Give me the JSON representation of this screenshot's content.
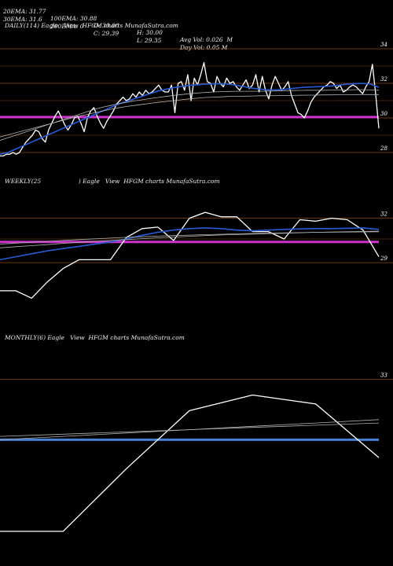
{
  "header": {
    "row1": [
      {
        "id": "ema20",
        "text": "20EMA: 31.77"
      },
      {
        "id": "ema100",
        "text": "100EMA: 30.88"
      },
      {
        "id": "open",
        "text": "O: 30.00"
      },
      {
        "id": "high",
        "text": "H: 30.00"
      },
      {
        "id": "avgvol",
        "text": "Avg Vol: 0.026  M"
      }
    ],
    "row2": [
      {
        "id": "ema30",
        "text": "30EMA: 31.6"
      },
      {
        "id": "ema200",
        "text": "200EMA: 0"
      },
      {
        "id": "close",
        "text": "C: 29.39"
      },
      {
        "id": "low",
        "text": "L: 29.35"
      },
      {
        "id": "dayvol",
        "text": "Day Vol: 0.05 M"
      }
    ]
  },
  "colors": {
    "background": "#000000",
    "price": "#ffffff",
    "ema_fast": "#2a5bd7",
    "ema_slow": "#b0b0b0",
    "support": "#cc33cc",
    "grid": "#8b4513",
    "monthly_band": "#4a7fd6"
  },
  "chart_data": [
    {
      "type": "line",
      "panel": "daily",
      "label": "DAILY(114) Eagle   View  HFGM charts MunafaSutra.com",
      "yticks": [
        34,
        32,
        30,
        28
      ],
      "ylim": [
        27.5,
        35.0
      ],
      "support_level": 30.05,
      "series": [
        {
          "name": "price",
          "values": [
            27.8,
            27.8,
            27.9,
            27.9,
            28.0,
            27.9,
            28.0,
            28.3,
            28.6,
            28.8,
            29.0,
            29.3,
            29.2,
            28.8,
            28.6,
            29.3,
            29.7,
            30.1,
            30.4,
            30.0,
            29.6,
            29.3,
            29.6,
            30.0,
            30.1,
            29.7,
            29.2,
            30.0,
            30.4,
            30.6,
            30.1,
            29.7,
            29.4,
            29.8,
            30.1,
            30.4,
            30.8,
            31.0,
            31.2,
            31.0,
            31.1,
            31.4,
            31.2,
            31.5,
            31.3,
            31.6,
            31.4,
            31.5,
            31.7,
            31.9,
            31.6,
            31.5,
            31.5,
            31.9,
            30.3,
            32.0,
            32.1,
            31.6,
            32.5,
            31.0,
            32.3,
            31.9,
            32.5,
            33.2,
            32.1,
            32.0,
            31.5,
            32.4,
            32.0,
            31.8,
            32.3,
            32.0,
            32.1,
            31.8,
            31.6,
            31.9,
            32.2,
            31.7,
            31.9,
            32.5,
            31.5,
            32.4,
            31.6,
            31.1,
            31.9,
            32.4,
            32.0,
            31.6,
            31.8,
            32.1,
            31.3,
            30.8,
            30.3,
            30.2,
            30.0,
            30.4,
            30.9,
            31.2,
            31.4,
            31.6,
            31.8,
            31.9,
            32.1,
            32.0,
            31.7,
            31.9,
            31.5,
            31.6,
            31.8,
            31.9,
            31.8,
            31.6,
            31.4,
            31.8,
            32.1,
            33.1,
            31.4,
            29.4
          ]
        },
        {
          "name": "ema_fast",
          "values": [
            27.9,
            28.0,
            28.2,
            28.4,
            28.6,
            28.8,
            29.0,
            29.2,
            29.4,
            29.6,
            29.8,
            30.0,
            30.2,
            30.4,
            30.6,
            30.8,
            30.95,
            31.1,
            31.25,
            31.4,
            31.55,
            31.65,
            31.75,
            31.82,
            31.88,
            31.92,
            31.95,
            31.97,
            31.98,
            31.95,
            31.88,
            31.8,
            31.72,
            31.66,
            31.62,
            31.62,
            31.65,
            31.7,
            31.75,
            31.78,
            31.8,
            31.82,
            31.85,
            31.9,
            31.95,
            31.98,
            32.0,
            31.95,
            31.77
          ]
        },
        {
          "name": "ema_slow_1",
          "values": [
            28.7,
            28.85,
            29.0,
            29.15,
            29.3,
            29.45,
            29.6,
            29.75,
            29.9,
            30.05,
            30.2,
            30.35,
            30.5,
            30.62,
            30.72,
            30.82,
            30.9,
            30.98,
            31.05,
            31.12,
            31.18,
            31.24,
            31.3,
            31.35,
            31.4,
            31.44,
            31.47,
            31.5,
            31.52,
            31.53,
            31.54,
            31.54,
            31.54,
            31.54,
            31.55,
            31.56,
            31.57,
            31.58,
            31.59,
            31.6,
            31.6,
            31.6,
            31.61,
            31.62,
            31.62,
            31.63,
            31.63,
            31.62,
            31.6
          ]
        },
        {
          "name": "ema_slow_2",
          "values": [
            28.9,
            29.02,
            29.14,
            29.26,
            29.38,
            29.5,
            29.62,
            29.74,
            29.86,
            29.98,
            30.1,
            30.2,
            30.3,
            30.4,
            30.5,
            30.58,
            30.66,
            30.72,
            30.78,
            30.84,
            30.9,
            30.95,
            31.0,
            31.05,
            31.1,
            31.14,
            31.18,
            31.2,
            31.22,
            31.24,
            31.25,
            31.26,
            31.27,
            31.28,
            31.28,
            31.29,
            31.3,
            31.3,
            31.31,
            31.32,
            31.32,
            31.33,
            31.33,
            31.34,
            31.34,
            31.35,
            31.35,
            31.35,
            31.35
          ]
        }
      ]
    },
    {
      "type": "line",
      "panel": "weekly",
      "label": "WEEKLY(25                    ) Eagle   View  HFGM charts MunafaSutra.com",
      "yticks": [
        32,
        29
      ],
      "ylim": [
        25.5,
        34.0
      ],
      "support_level": 30.4,
      "series": [
        {
          "name": "price",
          "values": [
            27.1,
            27.1,
            26.6,
            27.7,
            28.6,
            29.2,
            29.2,
            29.2,
            30.7,
            31.3,
            31.4,
            30.5,
            32.0,
            32.4,
            32.1,
            32.1,
            31.1,
            31.1,
            30.6,
            31.9,
            31.8,
            32.0,
            31.9,
            31.2,
            29.4
          ]
        },
        {
          "name": "ema_fast",
          "values": [
            29.2,
            29.4,
            29.6,
            29.8,
            29.95,
            30.1,
            30.25,
            30.4,
            30.6,
            30.85,
            31.05,
            31.2,
            31.3,
            31.35,
            31.3,
            31.2,
            31.15,
            31.2,
            31.25,
            31.28,
            31.3,
            31.3,
            31.32,
            31.35,
            31.25
          ]
        },
        {
          "name": "ema_slow_1",
          "values": [
            30.0,
            30.08,
            30.15,
            30.22,
            30.3,
            30.37,
            30.44,
            30.5,
            30.56,
            30.62,
            30.68,
            30.73,
            30.78,
            30.83,
            30.87,
            30.9,
            30.93,
            30.96,
            30.99,
            31.02,
            31.05,
            31.07,
            31.09,
            31.11,
            31.13
          ]
        },
        {
          "name": "ema_slow_2",
          "values": [
            30.25,
            30.32,
            30.38,
            30.44,
            30.5,
            30.56,
            30.61,
            30.66,
            30.71,
            30.75,
            30.79,
            30.83,
            30.86,
            30.89,
            30.92,
            30.95,
            30.97,
            30.99,
            31.01,
            31.03,
            31.05,
            31.06,
            31.07,
            31.08,
            31.09
          ]
        }
      ]
    },
    {
      "type": "line",
      "panel": "monthly",
      "label": "MONTHLY(6) Eagle   View  HFGM charts MunafaSutra.com",
      "yticks": [
        33
      ],
      "ylim": [
        25.0,
        34.5
      ],
      "support_level": 30.3,
      "series": [
        {
          "name": "price",
          "values": [
            26.2,
            26.2,
            29.0,
            31.6,
            32.3,
            31.9,
            29.5
          ]
        },
        {
          "name": "ema_slow_1",
          "values": [
            30.3,
            30.45,
            30.6,
            30.75,
            30.9,
            31.05,
            31.2
          ]
        },
        {
          "name": "ema_slow_2",
          "values": [
            30.45,
            30.55,
            30.65,
            30.75,
            30.85,
            30.95,
            31.05
          ]
        }
      ]
    }
  ]
}
